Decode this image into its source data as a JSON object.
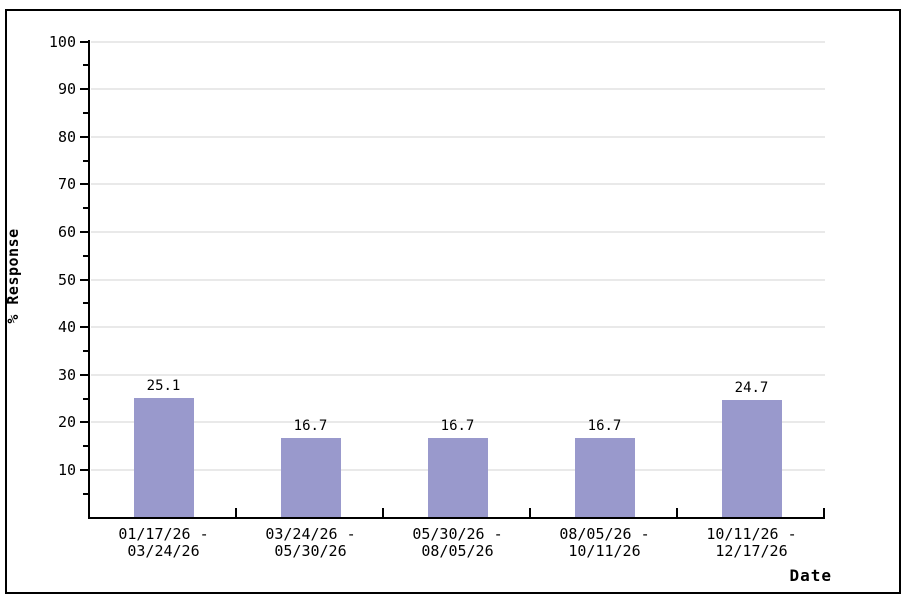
{
  "chart_data": {
    "type": "bar",
    "title": "",
    "xlabel": "Date",
    "ylabel": "% Response",
    "categories": [
      "01/17/26 - 03/24/26",
      "03/24/26 - 05/30/26",
      "05/30/26 - 08/05/26",
      "08/05/26 - 10/11/26",
      "10/11/26 - 12/17/26"
    ],
    "category_label_lines": [
      [
        "01/17/26 -",
        "03/24/26"
      ],
      [
        "03/24/26 -",
        "05/30/26"
      ],
      [
        "05/30/26 -",
        "08/05/26"
      ],
      [
        "08/05/26 -",
        "10/11/26"
      ],
      [
        "10/11/26 -",
        "12/17/26"
      ]
    ],
    "values": [
      25.1,
      16.7,
      16.7,
      16.7,
      24.7
    ],
    "value_labels": [
      "25.1",
      "16.7",
      "16.7",
      "16.7",
      "24.7"
    ],
    "ylim": [
      0,
      100
    ],
    "y_major_ticks": [
      10,
      20,
      30,
      40,
      50,
      60,
      70,
      80,
      90,
      100
    ],
    "y_minor_ticks": [
      5,
      15,
      25,
      35,
      45,
      55,
      65,
      75,
      85,
      95
    ],
    "grid": "horizontal-major",
    "legend": "none",
    "colors": {
      "bar": "#9999cc",
      "grid": "#e9e9e9",
      "axis": "#000000",
      "text": "#000000",
      "background": "#ffffff",
      "border": "#000000"
    }
  }
}
